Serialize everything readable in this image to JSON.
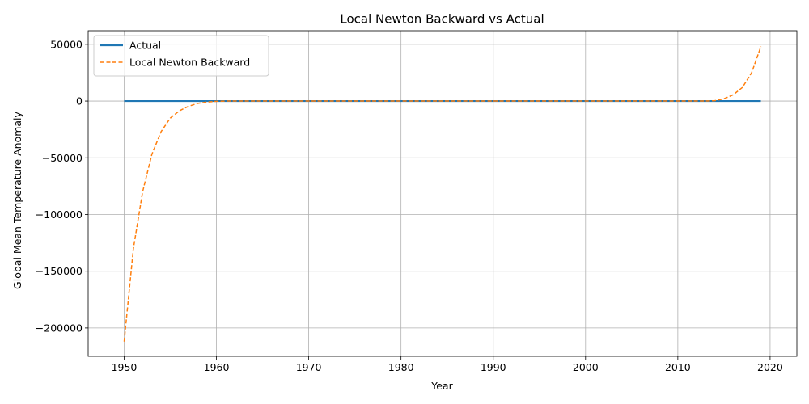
{
  "chart_data": {
    "type": "line",
    "title": "Local Newton Backward vs Actual",
    "xlabel": "Year",
    "ylabel": "Global Mean Temperature Anomaly",
    "xlim": [
      1946.1,
      2022.9
    ],
    "ylim": [
      -225000,
      62000
    ],
    "x_ticks": [
      1950,
      1960,
      1970,
      1980,
      1990,
      2000,
      2010,
      2020
    ],
    "y_ticks": [
      -200000,
      -150000,
      -100000,
      -50000,
      0,
      50000
    ],
    "y_tick_labels": [
      "−200000",
      "−150000",
      "−100000",
      "−50000",
      "0",
      "50000"
    ],
    "grid": true,
    "legend_position": "upper-left",
    "series": [
      {
        "name": "Actual",
        "color": "#1f77b4",
        "style": "solid",
        "points": [
          [
            1950,
            0
          ],
          [
            2019,
            0
          ]
        ]
      },
      {
        "name": "Local Newton Backward",
        "color": "#ff7f0e",
        "style": "dashed",
        "points": [
          [
            1950,
            -212000
          ],
          [
            1951,
            -130000
          ],
          [
            1952,
            -80000
          ],
          [
            1953,
            -47000
          ],
          [
            1954,
            -27000
          ],
          [
            1955,
            -15000
          ],
          [
            1956,
            -8500
          ],
          [
            1957,
            -4500
          ],
          [
            1958,
            -2000
          ],
          [
            1959,
            -800
          ],
          [
            1960,
            -200
          ],
          [
            1961,
            0
          ],
          [
            2013,
            0
          ],
          [
            2014,
            300
          ],
          [
            2015,
            2000
          ],
          [
            2016,
            5500
          ],
          [
            2017,
            12000
          ],
          [
            2018,
            25000
          ],
          [
            2019,
            48000
          ]
        ]
      }
    ]
  }
}
